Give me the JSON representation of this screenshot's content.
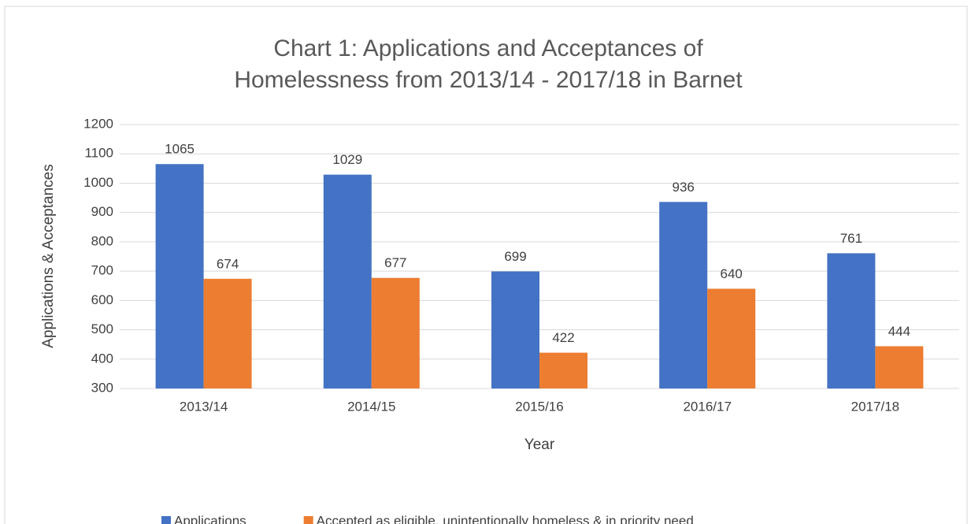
{
  "chart_data": {
    "type": "bar",
    "title": "Chart 1: Applications and Acceptances of Homelessness from 2013/14 - 2017/18 in Barnet",
    "x_label": "Year",
    "y_label": "Applications & Acceptances",
    "categories": [
      "2013/14",
      "2014/15",
      "2015/16",
      "2016/17",
      "2017/18"
    ],
    "series": [
      {
        "name": "Applications",
        "color": "#4472c4",
        "values": [
          1065,
          1029,
          699,
          936,
          761
        ]
      },
      {
        "name": "Accepted as eligible, unintentionally homeless & in priority need",
        "color": "#ed7d31",
        "values": [
          674,
          677,
          422,
          640,
          444
        ]
      }
    ],
    "ylim": [
      300,
      1200
    ],
    "yticks": [
      300,
      400,
      500,
      600,
      700,
      800,
      900,
      1000,
      1100,
      1200
    ],
    "grid": true,
    "legend": "bottom"
  }
}
